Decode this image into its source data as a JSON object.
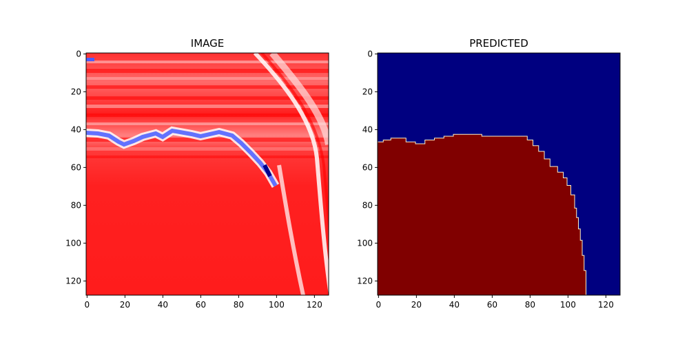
{
  "chart_data": [
    {
      "type": "heatmap",
      "title": "IMAGE",
      "colormap": "seismic",
      "xlim": [
        0,
        127
      ],
      "ylim": [
        127,
        0
      ],
      "x_ticks": [
        0,
        20,
        40,
        60,
        80,
        100,
        120
      ],
      "y_ticks": [
        0,
        20,
        40,
        60,
        80,
        100,
        120
      ],
      "features": {
        "background": "red",
        "bright_horizon_depth_profile": [
          [
            0,
            42
          ],
          [
            6,
            42
          ],
          [
            12,
            43
          ],
          [
            17,
            47
          ],
          [
            20,
            48
          ],
          [
            25,
            46
          ],
          [
            30,
            44
          ],
          [
            37,
            42
          ],
          [
            40,
            44
          ],
          [
            45,
            41
          ],
          [
            55,
            43
          ],
          [
            60,
            44
          ],
          [
            70,
            42
          ],
          [
            77,
            44
          ],
          [
            82,
            48
          ],
          [
            87,
            53
          ],
          [
            92,
            58
          ],
          [
            96,
            63
          ],
          [
            100,
            70
          ]
        ],
        "dipping_fault_zone": [
          [
            75,
            0
          ],
          [
            90,
            20
          ],
          [
            100,
            45
          ],
          [
            102,
            70
          ],
          [
            107,
            100
          ],
          [
            112,
            127
          ]
        ]
      }
    },
    {
      "type": "heatmap",
      "title": "PREDICTED",
      "colormap": "jet",
      "xlim": [
        0,
        127
      ],
      "ylim": [
        127,
        0
      ],
      "x_ticks": [
        0,
        20,
        40,
        60,
        80,
        100,
        120
      ],
      "y_ticks": [
        0,
        20,
        40,
        60,
        80,
        100,
        120
      ],
      "classes": [
        {
          "value": 0,
          "color": "#000080"
        },
        {
          "value": 1,
          "color": "#800000"
        }
      ],
      "boundary": [
        [
          0,
          47
        ],
        [
          3,
          46
        ],
        [
          7,
          45
        ],
        [
          12,
          45
        ],
        [
          15,
          47
        ],
        [
          20,
          48
        ],
        [
          25,
          46
        ],
        [
          30,
          45
        ],
        [
          35,
          44
        ],
        [
          40,
          43
        ],
        [
          45,
          43
        ],
        [
          55,
          44
        ],
        [
          76,
          44
        ],
        [
          79,
          46
        ],
        [
          82,
          49
        ],
        [
          85,
          52
        ],
        [
          88,
          56
        ],
        [
          91,
          60
        ],
        [
          95,
          63
        ],
        [
          98,
          66
        ],
        [
          100,
          70
        ],
        [
          102,
          75
        ],
        [
          104,
          82
        ],
        [
          105,
          87
        ],
        [
          106,
          93
        ],
        [
          107,
          99
        ],
        [
          108,
          107
        ],
        [
          109,
          115
        ],
        [
          110,
          123
        ],
        [
          110,
          127
        ]
      ]
    }
  ]
}
